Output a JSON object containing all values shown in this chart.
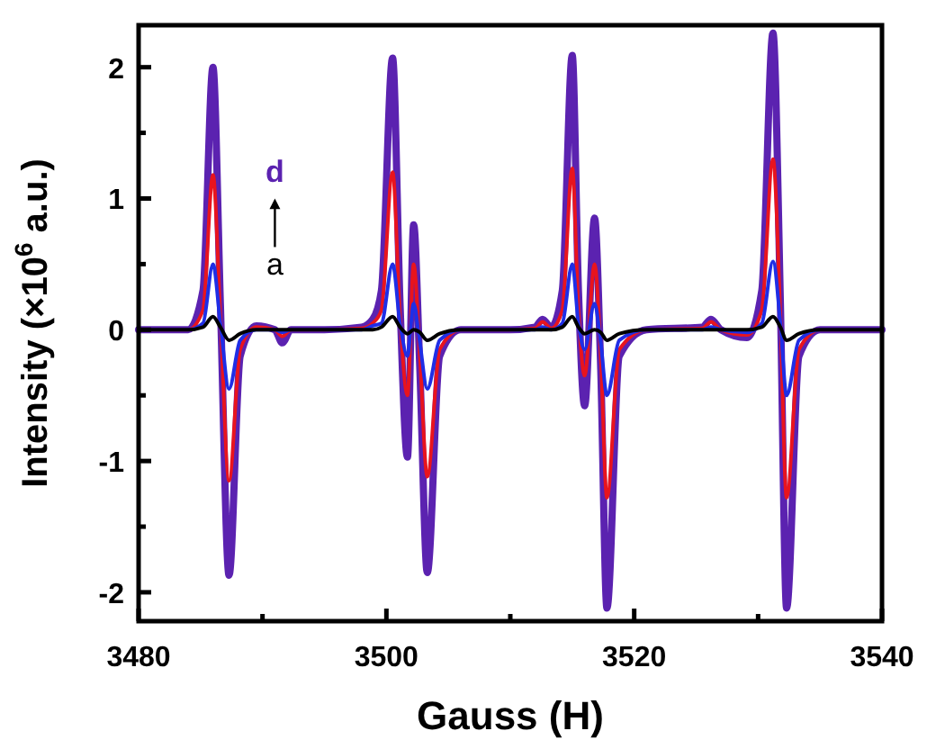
{
  "chart_data": {
    "type": "line",
    "xlabel": "Gauss (H)",
    "ylabel": "Intensity (×10$^{6}$ a.u.)",
    "x": [
      3480,
      3484,
      3485.2,
      3486.0,
      3486.6,
      3487.3,
      3488.2,
      3489.5,
      3491.0,
      3491.6,
      3492.3,
      3495,
      3498.0,
      3498.9,
      3499.6,
      3500.5,
      3501.1,
      3501.7,
      3502.2,
      3502.7,
      3503.3,
      3504.3,
      3506,
      3510,
      3512.0,
      3512.6,
      3513.3,
      3514.2,
      3515.0,
      3515.5,
      3516.0,
      3516.8,
      3517.3,
      3517.8,
      3518.8,
      3521,
      3525.5,
      3526.2,
      3527.0,
      3529.1,
      3530.3,
      3531.2,
      3531.8,
      3532.3,
      3533.3,
      3535,
      3540
    ],
    "series": [
      {
        "name": "d",
        "color": "#5b22b0",
        "values": [
          0,
          0,
          0.3,
          2.0,
          0.2,
          -1.87,
          -0.2,
          0.03,
          0,
          -0.1,
          0,
          0,
          0.02,
          0.08,
          0.3,
          2.07,
          0.2,
          -0.97,
          0.8,
          -0.3,
          -1.85,
          -0.2,
          0,
          0,
          0.02,
          0.08,
          0.02,
          0.3,
          2.09,
          0.3,
          -0.58,
          0.85,
          -0.3,
          -2.12,
          -0.2,
          0,
          0.02,
          0.08,
          0,
          -0.06,
          0.3,
          2.26,
          0.2,
          -2.12,
          -0.2,
          0,
          0
        ]
      },
      {
        "color": "#e8141e",
        "values": [
          0,
          0,
          0.15,
          1.18,
          0.1,
          -1.15,
          -0.15,
          0.02,
          0,
          -0.05,
          0,
          0,
          0.01,
          0.05,
          0.15,
          1.2,
          0.1,
          -0.5,
          0.5,
          -0.2,
          -1.12,
          -0.15,
          0,
          0,
          0.01,
          0.06,
          0.01,
          0.15,
          1.23,
          0.15,
          -0.35,
          0.5,
          -0.2,
          -1.28,
          -0.15,
          0,
          0.01,
          0.06,
          0,
          -0.04,
          0.15,
          1.3,
          0.1,
          -1.28,
          -0.15,
          0,
          0
        ]
      },
      {
        "color": "#1f2ee6",
        "values": [
          0,
          0,
          0.05,
          0.5,
          0.05,
          -0.45,
          -0.08,
          0,
          0,
          -0.02,
          0,
          0,
          0,
          0.03,
          0.05,
          0.5,
          0.05,
          -0.2,
          0.2,
          -0.1,
          -0.45,
          -0.08,
          0,
          0,
          0,
          0.02,
          0,
          0.05,
          0.5,
          0.05,
          -0.15,
          0.2,
          -0.1,
          -0.5,
          -0.08,
          0,
          0,
          0.02,
          0,
          -0.02,
          0.05,
          0.52,
          0.05,
          -0.5,
          -0.08,
          0,
          0
        ]
      },
      {
        "name": "a",
        "color": "#000000",
        "values": [
          0,
          0,
          0.02,
          0.1,
          0.02,
          -0.08,
          -0.03,
          0,
          0,
          0,
          0,
          0,
          0,
          0,
          0.02,
          0.1,
          0.02,
          -0.03,
          0,
          -0.02,
          -0.08,
          -0.03,
          0,
          0,
          0,
          0,
          0,
          0.02,
          0.1,
          0.02,
          -0.03,
          0,
          -0.02,
          -0.08,
          -0.03,
          0,
          0,
          0,
          0,
          0,
          0.02,
          0.1,
          0.02,
          -0.08,
          -0.03,
          0,
          0
        ]
      }
    ],
    "xlim": [
      3480,
      3540
    ],
    "xticks": [
      3480,
      {
        "value": 3490,
        "label": null
      },
      3500,
      {
        "value": 3510,
        "label": null
      },
      3520,
      {
        "value": 3530,
        "label": null
      },
      3540
    ],
    "ylim": [
      -2.22,
      2.32
    ],
    "yticks": [
      -2,
      {
        "value": -1.5,
        "label": null
      },
      -1,
      {
        "value": -0.5,
        "label": null
      },
      0,
      {
        "value": 0.5,
        "label": null
      },
      1,
      {
        "value": 1.5,
        "label": null
      },
      2
    ],
    "grid": false
  }
}
